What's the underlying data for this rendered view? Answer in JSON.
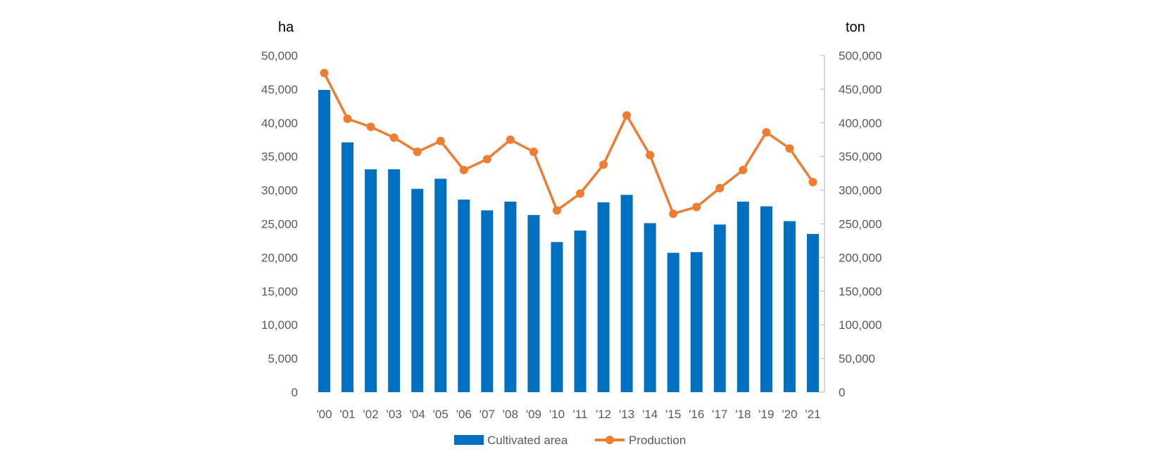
{
  "chart_data": {
    "type": "bar",
    "categories": [
      "'00",
      "'01",
      "'02",
      "'03",
      "'04",
      "'05",
      "'06",
      "'07",
      "'08",
      "'09",
      "'10",
      "'11",
      "'12",
      "'13",
      "'14",
      "'15",
      "'16",
      "'17",
      "'18",
      "'19",
      "'20",
      "'21"
    ],
    "series": [
      {
        "name": "Cultivated area",
        "type": "bar",
        "axis": "left",
        "color": "#0070C0",
        "values": [
          44900,
          37100,
          33100,
          33100,
          30200,
          31700,
          28600,
          27000,
          28300,
          26300,
          22300,
          24000,
          28200,
          29300,
          25100,
          20700,
          20800,
          24900,
          28300,
          27600,
          25400,
          23500
        ]
      },
      {
        "name": "Production",
        "type": "line",
        "axis": "right",
        "color": "#ED7D31",
        "values": [
          474000,
          406000,
          394000,
          378000,
          357000,
          373000,
          330000,
          346000,
          375000,
          357000,
          270000,
          295000,
          338000,
          411000,
          352000,
          265000,
          275000,
          303000,
          330000,
          386000,
          362000,
          312000
        ]
      }
    ],
    "y_left": {
      "unit": "ha",
      "ylim": [
        0,
        50000
      ],
      "ticks": [
        "0",
        "5,000",
        "10,000",
        "15,000",
        "20,000",
        "25,000",
        "30,000",
        "35,000",
        "40,000",
        "45,000",
        "50,000"
      ]
    },
    "y_right": {
      "unit": "ton",
      "ylim": [
        0,
        500000
      ],
      "ticks": [
        "0",
        "50,000",
        "100,000",
        "150,000",
        "200,000",
        "250,000",
        "300,000",
        "350,000",
        "400,000",
        "450,000",
        "500,000"
      ]
    },
    "grid": false,
    "legend_position": "bottom",
    "title": "",
    "xlabel": ""
  }
}
